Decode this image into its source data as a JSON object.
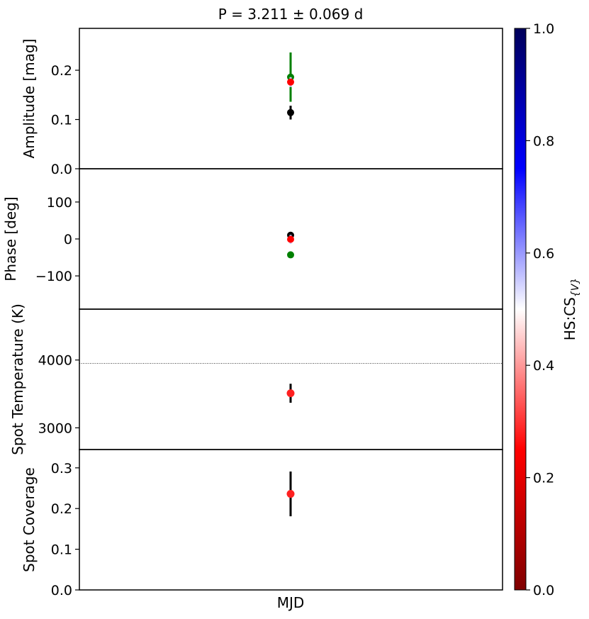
{
  "title": "P = 3.211 ± 0.069 d",
  "xlabel": "MJD",
  "colorbar": {
    "label_main": "HS:CS",
    "label_sub": "{V}",
    "range": [
      0,
      1
    ],
    "ticks": [
      0.0,
      0.2,
      0.4,
      0.6,
      0.8,
      1.0
    ],
    "tick_labels": [
      "0.0",
      "0.2",
      "0.4",
      "0.6",
      "0.8",
      "1.0"
    ],
    "colormap": [
      "#7f0000",
      "#ff0000",
      "#ffffff",
      "#0000ff",
      "#00005a"
    ]
  },
  "chart_data": [
    {
      "type": "scatter",
      "ylabel": "Amplitude [mag]",
      "ylim": [
        0.0,
        0.285
      ],
      "yticks": [
        0.0,
        0.1,
        0.2
      ],
      "ytick_labels": [
        "0.0",
        "0.1",
        "0.2"
      ],
      "points": [
        {
          "y": 0.186,
          "err": 0.05,
          "color": "#008000"
        },
        {
          "y": 0.176,
          "err": 0.01,
          "color": "#ff0000"
        },
        {
          "y": 0.114,
          "err": 0.014,
          "color": "#000000"
        }
      ]
    },
    {
      "type": "scatter",
      "ylabel": "Phase [deg]",
      "ylim": [
        -190,
        190
      ],
      "yticks": [
        -100,
        0,
        100
      ],
      "ytick_labels": [
        "−100",
        "0",
        "100"
      ],
      "points": [
        {
          "y": 10,
          "err": 0,
          "color": "#000000"
        },
        {
          "y": -1,
          "err": 12,
          "color": "#ff0000"
        },
        {
          "y": -43,
          "err": 0,
          "color": "#008000"
        }
      ]
    },
    {
      "type": "scatter",
      "ylabel": "Spot Temperature (K)",
      "ylim": [
        2680,
        4750
      ],
      "yticks": [
        3000,
        4000
      ],
      "ytick_labels": [
        "3000",
        "4000"
      ],
      "reference_line": 3950,
      "points": [
        {
          "y": 3510,
          "err": 140,
          "color": "#ff2020"
        }
      ]
    },
    {
      "type": "scatter",
      "ylabel": "Spot Coverage",
      "ylim": [
        0.0,
        0.345
      ],
      "yticks": [
        0.0,
        0.1,
        0.2,
        0.3
      ],
      "ytick_labels": [
        "0.0",
        "0.1",
        "0.2",
        "0.3"
      ],
      "points": [
        {
          "y": 0.236,
          "err": 0.055,
          "color": "#ff2020"
        }
      ]
    }
  ]
}
